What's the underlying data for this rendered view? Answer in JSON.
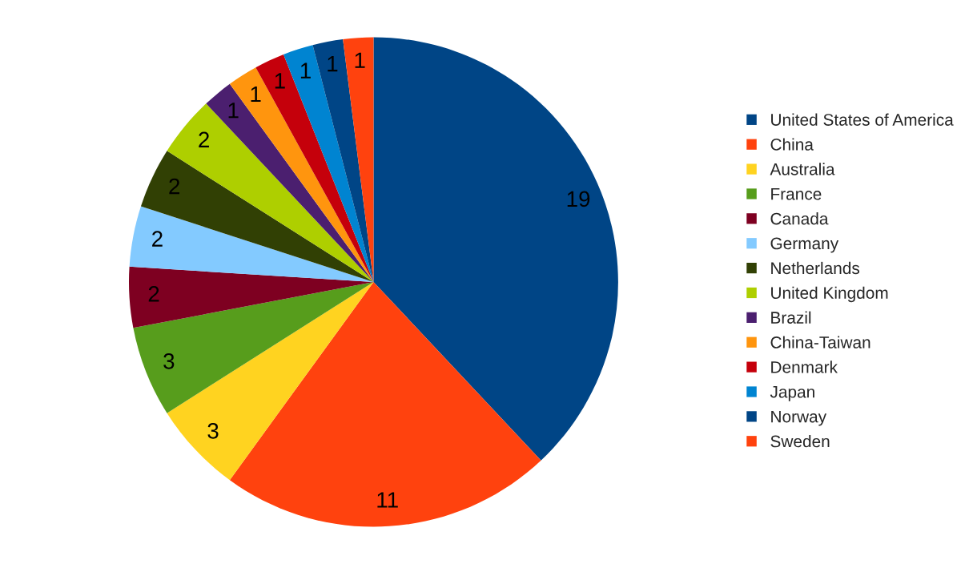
{
  "chart_data": {
    "type": "pie",
    "categories": [
      "United States of America",
      "China",
      "Australia",
      "France",
      "Canada",
      "Germany",
      "Netherlands",
      "United Kingdom",
      "Brazil",
      "China-Taiwan",
      "Denmark",
      "Japan",
      "Norway",
      "Sweden"
    ],
    "values": [
      19,
      11,
      3,
      3,
      2,
      2,
      2,
      2,
      1,
      1,
      1,
      1,
      1,
      1
    ],
    "colors": [
      "#004586",
      "#ff420e",
      "#ffd320",
      "#579d1c",
      "#7e0021",
      "#83caff",
      "#314004",
      "#aecf00",
      "#4b1f6f",
      "#ff950e",
      "#c5000b",
      "#0084d1",
      "#004586",
      "#ff420e"
    ],
    "data_labels": true,
    "legend": "right"
  }
}
